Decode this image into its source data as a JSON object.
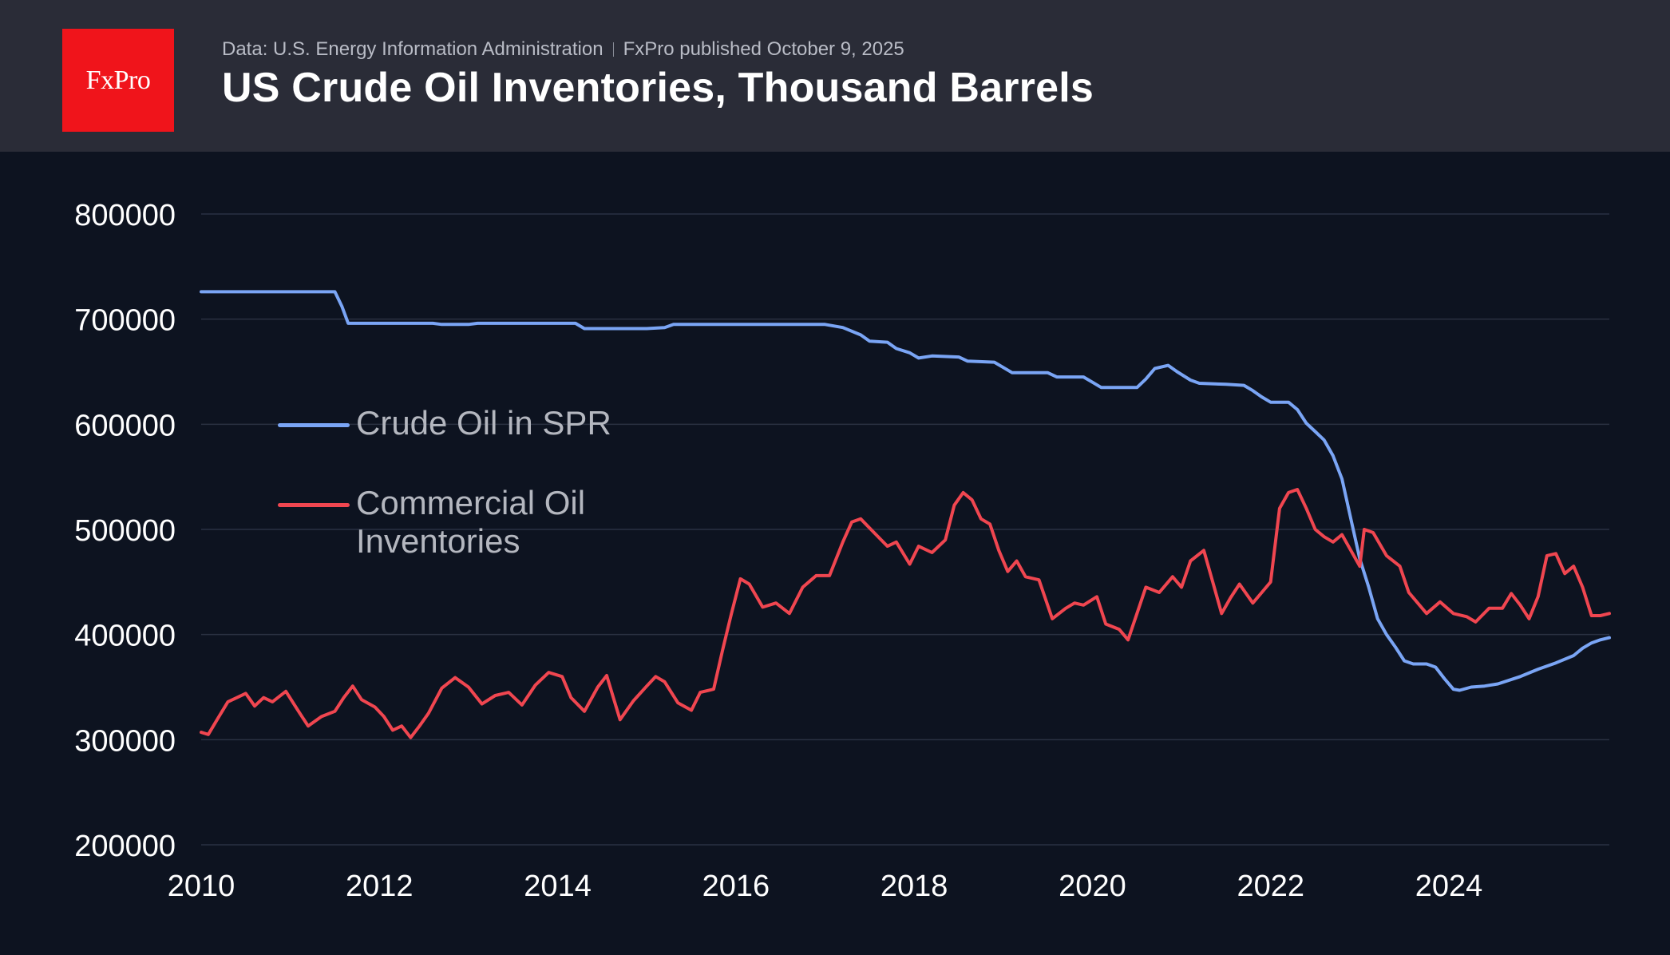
{
  "header": {
    "logo_text": "FxPro",
    "source": "Data: U.S. Energy Information Administration",
    "published": "FxPro published October 9, 2025",
    "title": "US Crude Oil Inventories, Thousand Barrels"
  },
  "colors": {
    "background": "#0d1320",
    "header_background": "#2a2c37",
    "logo": "#f0141b",
    "spr": "#7aa5f5",
    "commercial": "#f04650",
    "grid": "#2a3142",
    "tick_text": "#ffffff"
  },
  "chart_data": {
    "type": "line",
    "title": "US Crude Oil Inventories, Thousand Barrels",
    "xlabel": "",
    "ylabel": "",
    "xlim": [
      2010.0,
      2025.8
    ],
    "ylim": [
      200000,
      800000
    ],
    "x_ticks": [
      "2010",
      "2012",
      "2014",
      "2016",
      "2018",
      "2020",
      "2022",
      "2024"
    ],
    "y_ticks": [
      "800000",
      "700000",
      "600000",
      "500000",
      "400000",
      "300000",
      "200000"
    ],
    "grid": true,
    "legend_position": "upper-left inside plot",
    "series": [
      {
        "name": "Crude Oil in SPR",
        "color": "#7aa5f5",
        "points": [
          [
            2010.0,
            726000
          ],
          [
            2011.5,
            726000
          ],
          [
            2011.58,
            712000
          ],
          [
            2011.65,
            696000
          ],
          [
            2012.0,
            696000
          ],
          [
            2012.6,
            696000
          ],
          [
            2012.7,
            695000
          ],
          [
            2013.0,
            695000
          ],
          [
            2013.1,
            696000
          ],
          [
            2014.2,
            696000
          ],
          [
            2014.3,
            691000
          ],
          [
            2015.0,
            691000
          ],
          [
            2015.2,
            692000
          ],
          [
            2015.3,
            695000
          ],
          [
            2016.0,
            695000
          ],
          [
            2016.5,
            695000
          ],
          [
            2017.0,
            695000
          ],
          [
            2017.2,
            692000
          ],
          [
            2017.4,
            685000
          ],
          [
            2017.5,
            679000
          ],
          [
            2017.7,
            678000
          ],
          [
            2017.8,
            672000
          ],
          [
            2017.95,
            668000
          ],
          [
            2018.05,
            663000
          ],
          [
            2018.2,
            665000
          ],
          [
            2018.5,
            664000
          ],
          [
            2018.6,
            660000
          ],
          [
            2018.9,
            659000
          ],
          [
            2019.0,
            654000
          ],
          [
            2019.1,
            649000
          ],
          [
            2019.5,
            649000
          ],
          [
            2019.6,
            645000
          ],
          [
            2019.9,
            645000
          ],
          [
            2020.0,
            640000
          ],
          [
            2020.1,
            635000
          ],
          [
            2020.5,
            635000
          ],
          [
            2020.6,
            643000
          ],
          [
            2020.7,
            653000
          ],
          [
            2020.85,
            656000
          ],
          [
            2020.95,
            650000
          ],
          [
            2021.1,
            642000
          ],
          [
            2021.2,
            639000
          ],
          [
            2021.5,
            638000
          ],
          [
            2021.7,
            637000
          ],
          [
            2021.8,
            632000
          ],
          [
            2021.9,
            626000
          ],
          [
            2022.0,
            621000
          ],
          [
            2022.2,
            621000
          ],
          [
            2022.3,
            614000
          ],
          [
            2022.4,
            601000
          ],
          [
            2022.5,
            593000
          ],
          [
            2022.6,
            585000
          ],
          [
            2022.7,
            570000
          ],
          [
            2022.8,
            548000
          ],
          [
            2022.9,
            510000
          ],
          [
            2023.0,
            472000
          ],
          [
            2023.1,
            445000
          ],
          [
            2023.2,
            415000
          ],
          [
            2023.3,
            400000
          ],
          [
            2023.4,
            388000
          ],
          [
            2023.5,
            375000
          ],
          [
            2023.6,
            372000
          ],
          [
            2023.75,
            372000
          ],
          [
            2023.85,
            369000
          ],
          [
            2023.95,
            358000
          ],
          [
            2024.05,
            348000
          ],
          [
            2024.12,
            347000
          ],
          [
            2024.25,
            350000
          ],
          [
            2024.4,
            351000
          ],
          [
            2024.55,
            353000
          ],
          [
            2024.8,
            360000
          ],
          [
            2025.0,
            367000
          ],
          [
            2025.2,
            373000
          ],
          [
            2025.4,
            380000
          ],
          [
            2025.5,
            387000
          ],
          [
            2025.6,
            392000
          ],
          [
            2025.7,
            395000
          ],
          [
            2025.8,
            397000
          ]
        ]
      },
      {
        "name": "Commercial Oil Inventories",
        "color": "#f04650",
        "points": [
          [
            2010.0,
            307000
          ],
          [
            2010.08,
            305000
          ],
          [
            2010.2,
            322000
          ],
          [
            2010.3,
            336000
          ],
          [
            2010.4,
            340000
          ],
          [
            2010.5,
            344000
          ],
          [
            2010.6,
            332000
          ],
          [
            2010.7,
            340000
          ],
          [
            2010.8,
            336000
          ],
          [
            2010.95,
            346000
          ],
          [
            2011.1,
            326000
          ],
          [
            2011.2,
            313000
          ],
          [
            2011.35,
            322000
          ],
          [
            2011.5,
            327000
          ],
          [
            2011.6,
            340000
          ],
          [
            2011.7,
            351000
          ],
          [
            2011.8,
            338000
          ],
          [
            2011.95,
            331000
          ],
          [
            2012.05,
            322000
          ],
          [
            2012.15,
            309000
          ],
          [
            2012.25,
            313000
          ],
          [
            2012.35,
            302000
          ],
          [
            2012.45,
            313000
          ],
          [
            2012.55,
            325000
          ],
          [
            2012.7,
            349000
          ],
          [
            2012.85,
            359000
          ],
          [
            2013.0,
            350000
          ],
          [
            2013.15,
            334000
          ],
          [
            2013.3,
            342000
          ],
          [
            2013.45,
            345000
          ],
          [
            2013.6,
            333000
          ],
          [
            2013.75,
            352000
          ],
          [
            2013.9,
            364000
          ],
          [
            2014.05,
            360000
          ],
          [
            2014.15,
            340000
          ],
          [
            2014.3,
            327000
          ],
          [
            2014.45,
            350000
          ],
          [
            2014.55,
            361000
          ],
          [
            2014.7,
            319000
          ],
          [
            2014.85,
            337000
          ],
          [
            2015.0,
            351000
          ],
          [
            2015.1,
            360000
          ],
          [
            2015.2,
            355000
          ],
          [
            2015.35,
            335000
          ],
          [
            2015.5,
            328000
          ],
          [
            2015.6,
            345000
          ],
          [
            2015.75,
            348000
          ],
          [
            2015.85,
            385000
          ],
          [
            2015.95,
            420000
          ],
          [
            2016.05,
            453000
          ],
          [
            2016.15,
            448000
          ],
          [
            2016.3,
            426000
          ],
          [
            2016.45,
            430000
          ],
          [
            2016.6,
            420000
          ],
          [
            2016.75,
            445000
          ],
          [
            2016.9,
            456000
          ],
          [
            2017.05,
            456000
          ],
          [
            2017.2,
            488000
          ],
          [
            2017.3,
            507000
          ],
          [
            2017.4,
            510000
          ],
          [
            2017.55,
            497000
          ],
          [
            2017.7,
            484000
          ],
          [
            2017.8,
            488000
          ],
          [
            2017.95,
            467000
          ],
          [
            2018.05,
            484000
          ],
          [
            2018.2,
            478000
          ],
          [
            2018.35,
            490000
          ],
          [
            2018.45,
            523000
          ],
          [
            2018.55,
            535000
          ],
          [
            2018.65,
            528000
          ],
          [
            2018.75,
            510000
          ],
          [
            2018.85,
            505000
          ],
          [
            2018.95,
            480000
          ],
          [
            2019.05,
            460000
          ],
          [
            2019.15,
            470000
          ],
          [
            2019.25,
            455000
          ],
          [
            2019.4,
            452000
          ],
          [
            2019.55,
            415000
          ],
          [
            2019.7,
            425000
          ],
          [
            2019.8,
            430000
          ],
          [
            2019.9,
            428000
          ],
          [
            2020.05,
            436000
          ],
          [
            2020.15,
            410000
          ],
          [
            2020.3,
            405000
          ],
          [
            2020.4,
            395000
          ],
          [
            2020.5,
            420000
          ],
          [
            2020.6,
            445000
          ],
          [
            2020.75,
            440000
          ],
          [
            2020.9,
            455000
          ],
          [
            2021.0,
            445000
          ],
          [
            2021.1,
            470000
          ],
          [
            2021.25,
            480000
          ],
          [
            2021.35,
            450000
          ],
          [
            2021.45,
            420000
          ],
          [
            2021.55,
            435000
          ],
          [
            2021.65,
            448000
          ],
          [
            2021.8,
            430000
          ],
          [
            2021.9,
            440000
          ],
          [
            2022.0,
            450000
          ],
          [
            2022.1,
            520000
          ],
          [
            2022.2,
            535000
          ],
          [
            2022.3,
            538000
          ],
          [
            2022.4,
            520000
          ],
          [
            2022.5,
            500000
          ],
          [
            2022.6,
            493000
          ],
          [
            2022.7,
            488000
          ],
          [
            2022.8,
            495000
          ],
          [
            2022.9,
            480000
          ],
          [
            2023.0,
            465000
          ],
          [
            2023.05,
            500000
          ],
          [
            2023.15,
            497000
          ],
          [
            2023.3,
            475000
          ],
          [
            2023.45,
            465000
          ],
          [
            2023.55,
            440000
          ],
          [
            2023.65,
            430000
          ],
          [
            2023.75,
            420000
          ],
          [
            2023.9,
            431000
          ],
          [
            2024.05,
            420000
          ],
          [
            2024.2,
            417000
          ],
          [
            2024.3,
            412000
          ],
          [
            2024.45,
            425000
          ],
          [
            2024.6,
            425000
          ],
          [
            2024.7,
            439000
          ],
          [
            2024.8,
            428000
          ],
          [
            2024.9,
            415000
          ],
          [
            2025.0,
            436000
          ],
          [
            2025.1,
            475000
          ],
          [
            2025.2,
            477000
          ],
          [
            2025.3,
            458000
          ],
          [
            2025.4,
            465000
          ],
          [
            2025.5,
            445000
          ],
          [
            2025.6,
            418000
          ],
          [
            2025.7,
            418000
          ],
          [
            2025.8,
            420000
          ]
        ]
      }
    ]
  }
}
